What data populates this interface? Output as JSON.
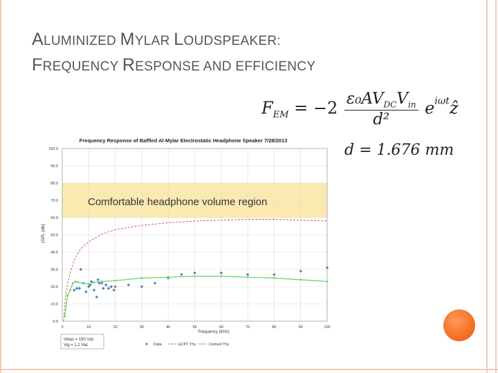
{
  "slide": {
    "title_line1_parts": [
      {
        "text": "A",
        "big": true
      },
      {
        "text": "LUMINIZED ",
        "big": false
      },
      {
        "text": "M",
        "big": true
      },
      {
        "text": "YLAR ",
        "big": false
      },
      {
        "text": "L",
        "big": true
      },
      {
        "text": "OUDSPEAKER:",
        "big": false
      }
    ],
    "title_line2_parts": [
      {
        "text": "F",
        "big": true
      },
      {
        "text": "REQUENCY ",
        "big": false
      },
      {
        "text": "R",
        "big": true
      },
      {
        "text": "ESPONSE AND EFFICIENCY",
        "big": false
      }
    ],
    "formula": {
      "lhs": "F",
      "lhs_sub": "EM",
      "equals": "= −2",
      "num": "ε₀AV",
      "num_sub": "DC",
      "num2": "V",
      "num2_sub": "in",
      "den": "d²",
      "exp_base": "e",
      "exp": "iωt",
      "unit": "ẑ"
    },
    "distance": "d = 1.676 mm",
    "border_color": "#f4c9b8",
    "accent_color": "#f26a1c"
  },
  "chart_data": {
    "type": "scatter",
    "title": "Frequency Response of Baffled Al-Mylar Electrostatic Headphone Speaker  7/28/2013",
    "xlabel": "Frequency (KHz)",
    "ylabel": "(SPL (db)",
    "xlim": [
      0,
      100
    ],
    "ylim": [
      0,
      100
    ],
    "x_ticks": [
      0,
      10,
      20,
      30,
      40,
      50,
      60,
      70,
      80,
      90,
      100
    ],
    "y_ticks": [
      0,
      10,
      20,
      30,
      40,
      50,
      60,
      70,
      80,
      90,
      100
    ],
    "y_tick_labels": [
      "0.0",
      "10.0",
      "20.0",
      "30.0",
      "40.0",
      "50.0",
      "60.0",
      "70.0",
      "80.0",
      "90.0",
      "100.0"
    ],
    "grid": true,
    "band": {
      "y_from": 60,
      "y_to": 80,
      "label": "Comfortable headphone volume region",
      "color": "#fbeab0"
    },
    "info_box": [
      "Vbias = 150 Vdc",
      "Vig   = 1.2 Vac"
    ],
    "legend_position": "bottom",
    "series": [
      {
        "name": "Data",
        "kind": "scatter",
        "color": "#4f81bd",
        "points": [
          [
            4.5,
            18
          ],
          [
            5.5,
            19
          ],
          [
            6.5,
            19
          ],
          [
            7,
            30
          ],
          [
            8,
            22
          ],
          [
            9,
            17
          ],
          [
            10,
            20
          ],
          [
            10.5,
            21
          ],
          [
            11,
            23
          ],
          [
            12,
            18
          ],
          [
            13,
            14
          ],
          [
            13.5,
            24
          ],
          [
            14,
            22
          ],
          [
            15,
            22
          ],
          [
            15.5,
            19
          ],
          [
            16.5,
            21
          ],
          [
            17.5,
            19
          ],
          [
            18.5,
            20
          ],
          [
            19.5,
            18
          ],
          [
            20,
            20
          ],
          [
            25,
            21
          ],
          [
            30,
            20
          ],
          [
            35,
            22
          ],
          [
            40,
            25
          ],
          [
            45,
            27
          ],
          [
            50,
            28
          ],
          [
            60,
            28
          ],
          [
            70,
            27
          ],
          [
            80,
            27
          ],
          [
            90,
            29
          ],
          [
            100,
            31
          ]
        ]
      },
      {
        "name": "ECPT Thy",
        "kind": "dashed-line",
        "color": "#c0504d",
        "points": [
          [
            0.5,
            0
          ],
          [
            1,
            10
          ],
          [
            1.5,
            17
          ],
          [
            2,
            22
          ],
          [
            3,
            28
          ],
          [
            4,
            33
          ],
          [
            5,
            37
          ],
          [
            7,
            42
          ],
          [
            10,
            46
          ],
          [
            15,
            50.5
          ],
          [
            20,
            53
          ],
          [
            30,
            55.5
          ],
          [
            40,
            57
          ],
          [
            50,
            58
          ],
          [
            60,
            58.5
          ],
          [
            70,
            59
          ],
          [
            80,
            59
          ],
          [
            90,
            58.5
          ],
          [
            100,
            58
          ]
        ]
      },
      {
        "name": "Comsol Thy",
        "kind": "line",
        "color": "#5fd35f",
        "points": [
          [
            1,
            3
          ],
          [
            2,
            15
          ],
          [
            3,
            18
          ],
          [
            4,
            22
          ],
          [
            5,
            23
          ],
          [
            6,
            22.5
          ],
          [
            8,
            22
          ],
          [
            10,
            21.5
          ],
          [
            12,
            22.5
          ],
          [
            15,
            23
          ],
          [
            20,
            23.5
          ],
          [
            30,
            25
          ],
          [
            40,
            25.5
          ],
          [
            50,
            26
          ],
          [
            60,
            26
          ],
          [
            70,
            25.5
          ],
          [
            80,
            25
          ],
          [
            90,
            24
          ],
          [
            100,
            23
          ]
        ]
      }
    ]
  }
}
